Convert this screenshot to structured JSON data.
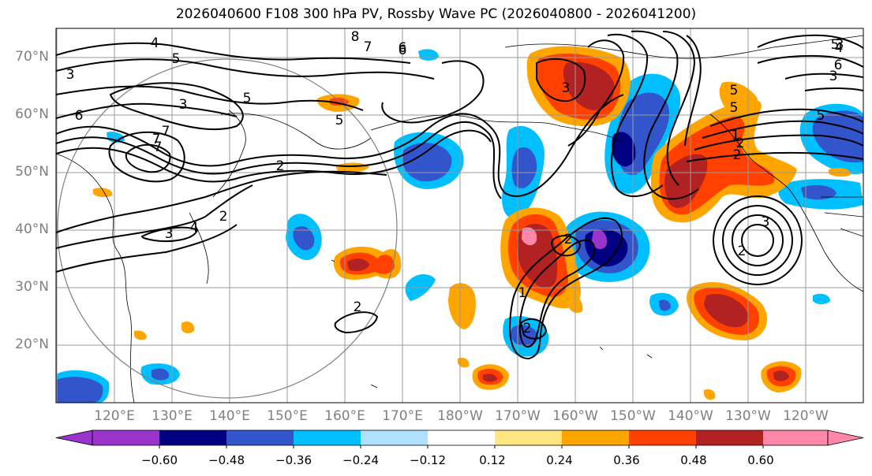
{
  "title": "2026040600 F108 300 hPa PV, Rossby Wave PC (2026040800 - 2026041200)",
  "lat_labels": [
    "70°N",
    "60°N",
    "50°N",
    "40°N",
    "30°N",
    "20°N"
  ],
  "lon_labels": [
    "120°E",
    "130°E",
    "140°E",
    "150°E",
    "160°E",
    "170°E",
    "180°W",
    "170°W",
    "160°W",
    "150°W",
    "140°W",
    "130°W",
    "120°W"
  ],
  "contour_labels": [
    "8",
    "7",
    "6",
    "5",
    "4",
    "3",
    "6",
    "5",
    "3",
    "6",
    "5",
    "2",
    "7",
    "4",
    "3",
    "2",
    "2",
    "1",
    "7",
    "5",
    "2",
    "5",
    "6",
    "3",
    "4",
    "3",
    "3",
    "2",
    "2",
    "1",
    "2",
    "2",
    "3",
    "5",
    "5",
    "7"
  ],
  "colorbar": {
    "ticks": [
      "−0.60",
      "−0.48",
      "−0.36",
      "−0.24",
      "−0.12",
      "0.12",
      "0.24",
      "0.36",
      "0.48",
      "0.60"
    ],
    "colors": [
      "#9933cc",
      "#000080",
      "#3355cc",
      "#00bfff",
      "#b0e0ff",
      "#ffffff",
      "#ffe680",
      "#ffa500",
      "#ff4000",
      "#b22222",
      "#ff88aa"
    ]
  },
  "palette": {
    "neg_strong": "#000080",
    "neg_mid": "#3355cc",
    "neg_light": "#00bfff",
    "neg_faint": "#b0e0ff",
    "neg_extreme": "#9933cc",
    "pos_faint": "#ffe680",
    "pos_light": "#ffa500",
    "pos_mid": "#ff4000",
    "pos_strong": "#b22222",
    "pos_extreme": "#ff88aa",
    "contour": "#000000",
    "grid": "#999999",
    "circle": "#808080"
  }
}
